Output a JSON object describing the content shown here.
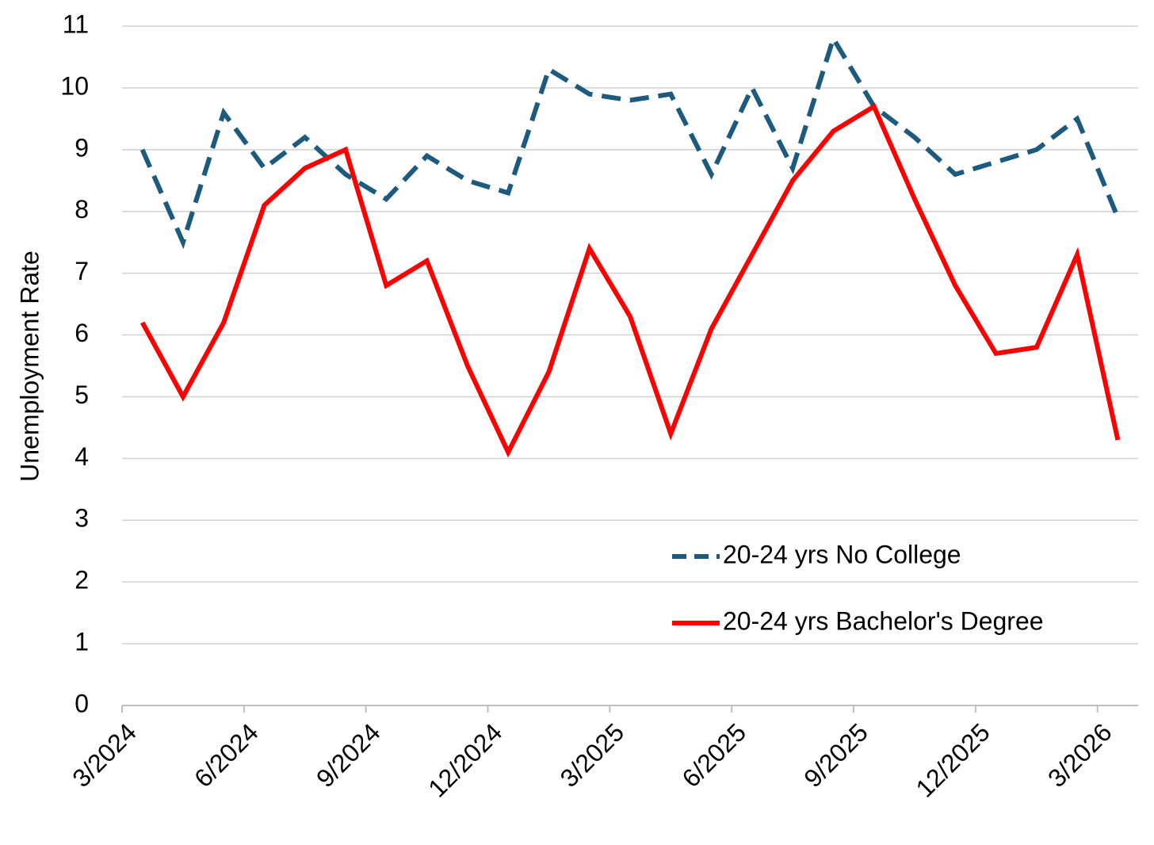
{
  "chart_data": {
    "type": "line",
    "y_label": "Unemployment Rate",
    "x": [
      "3/2024",
      "4/2024",
      "5/2024",
      "6/2024",
      "7/2024",
      "8/2024",
      "9/2024",
      "10/2024",
      "11/2024",
      "12/2024",
      "1/2025",
      "2/2025",
      "3/2025",
      "4/2025",
      "5/2025",
      "6/2025",
      "7/2025",
      "8/2025",
      "9/2025",
      "10/2025",
      "11/2025",
      "12/2025",
      "1/2026",
      "2/2026",
      "3/2026"
    ],
    "series": [
      {
        "name": "20-24 yrs No College",
        "color": "#1d5b7e",
        "line_style": "dashed",
        "values": [
          9.0,
          7.5,
          9.6,
          8.7,
          9.2,
          8.6,
          8.2,
          8.9,
          8.5,
          8.3,
          10.3,
          9.9,
          9.8,
          9.9,
          8.6,
          10.0,
          8.7,
          10.8,
          9.7,
          9.2,
          8.6,
          8.8,
          9.0,
          9.5,
          7.9
        ]
      },
      {
        "name": "20-24 yrs Bachelor's Degree",
        "color": "#ff0000",
        "line_style": "solid",
        "values": [
          6.2,
          5.0,
          6.2,
          8.1,
          8.7,
          9.0,
          6.8,
          7.2,
          5.5,
          4.1,
          5.4,
          7.4,
          6.3,
          4.4,
          6.1,
          7.3,
          8.5,
          9.3,
          9.7,
          8.2,
          6.8,
          5.7,
          5.8,
          7.3,
          4.3
        ]
      }
    ],
    "xlim": [
      "3/2024",
      "4/2026"
    ],
    "xticks": [
      "3/2024",
      "6/2024",
      "9/2024",
      "12/2024",
      "3/2025",
      "6/2025",
      "9/2025",
      "12/2025",
      "3/2026"
    ],
    "ylim": [
      0,
      11
    ],
    "yticks": [
      0,
      1,
      2,
      3,
      4,
      5,
      6,
      7,
      8,
      9,
      10,
      11
    ],
    "grid": true,
    "legend": "lower-right"
  }
}
